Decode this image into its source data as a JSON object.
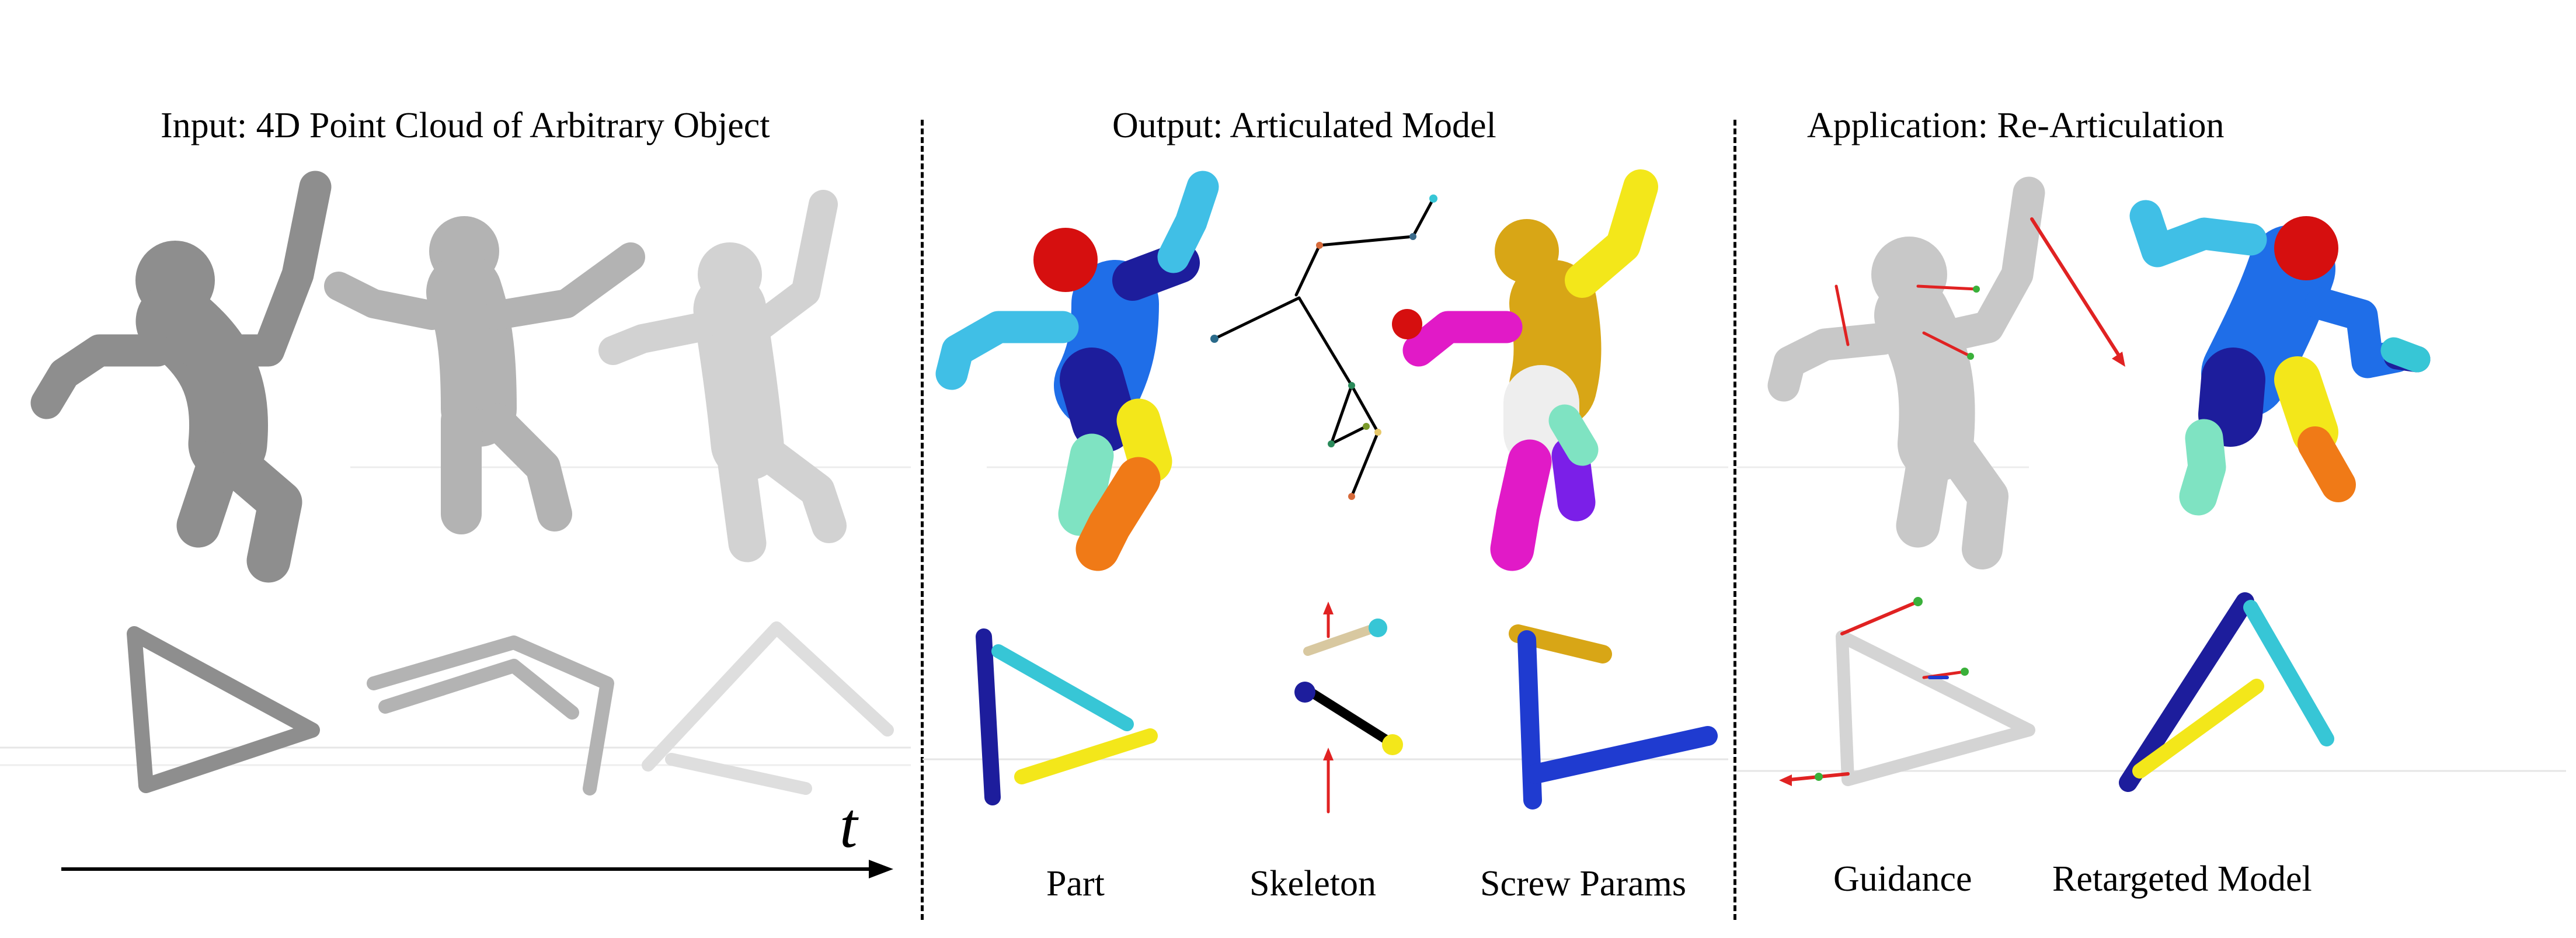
{
  "figure": {
    "headings": {
      "input": "Input: 4D Point Cloud of Arbitrary Object",
      "output": "Output: Articulated Model",
      "application": "Application: Re-Articulation"
    },
    "time_symbol": "t",
    "output_labels": {
      "part": "Part",
      "skeleton": "Skeleton",
      "screw": "Screw Params"
    },
    "application_labels": {
      "guidance": "Guidance",
      "retargeted": "Retargeted Model"
    },
    "colors": {
      "gray_dark": "#8e8e8e",
      "gray_mid": "#b3b3b3",
      "gray_light": "#d2d2d2",
      "navy": "#1d1d9c",
      "blue": "#1f6ee8",
      "light_blue": "#40bfe6",
      "cyan": "#37c6d6",
      "red": "#d60f0f",
      "yellow": "#f3e71a",
      "gold": "#d8a616",
      "orange": "#f07a17",
      "teal": "#7fe3c2",
      "magenta": "#e11ac7",
      "arrow_red": "#e02222",
      "skeleton_tan": "#d8c8a0"
    }
  }
}
